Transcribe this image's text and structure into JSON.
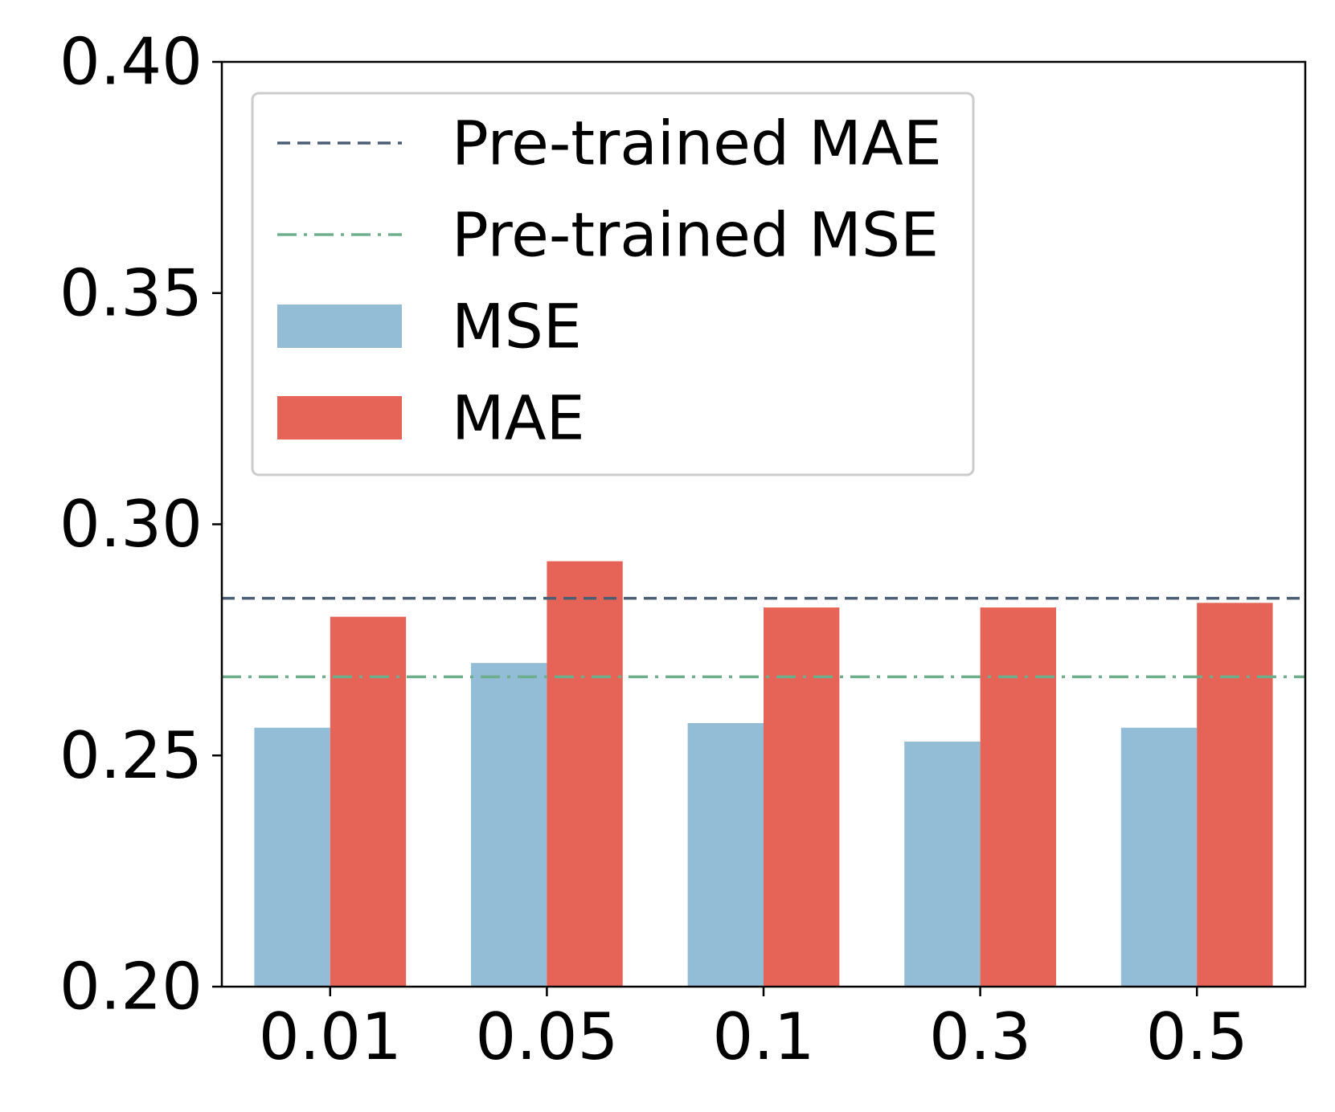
{
  "colors": {
    "mse_bar": "#93bcd6",
    "mae_bar": "#e66357",
    "pretrained_mae_line": "#4a5d73",
    "pretrained_mse_line": "#6fae8c",
    "axis": "#000000",
    "legend_border": "#cccccc"
  },
  "chart_data": {
    "type": "bar",
    "title": "",
    "xlabel": "",
    "ylabel": "",
    "categories": [
      "0.01",
      "0.05",
      "0.1",
      "0.3",
      "0.5"
    ],
    "series": [
      {
        "name": "MSE",
        "values": [
          0.256,
          0.27,
          0.257,
          0.253,
          0.256
        ]
      },
      {
        "name": "MAE",
        "values": [
          0.28,
          0.292,
          0.282,
          0.282,
          0.283
        ]
      }
    ],
    "reference_lines": [
      {
        "name": "Pre-trained MAE",
        "value": 0.284,
        "style": "dashed"
      },
      {
        "name": "Pre-trained MSE",
        "value": 0.267,
        "style": "dashdot"
      }
    ],
    "ylim": [
      0.2,
      0.4
    ],
    "yticks": [
      0.2,
      0.25,
      0.3,
      0.35,
      0.4
    ],
    "ytick_labels": [
      "0.20",
      "0.25",
      "0.30",
      "0.35",
      "0.40"
    ],
    "grid": false,
    "legend": {
      "position": "upper-left",
      "entries": [
        "Pre-trained MAE",
        "Pre-trained MSE",
        "MSE",
        "MAE"
      ]
    }
  }
}
